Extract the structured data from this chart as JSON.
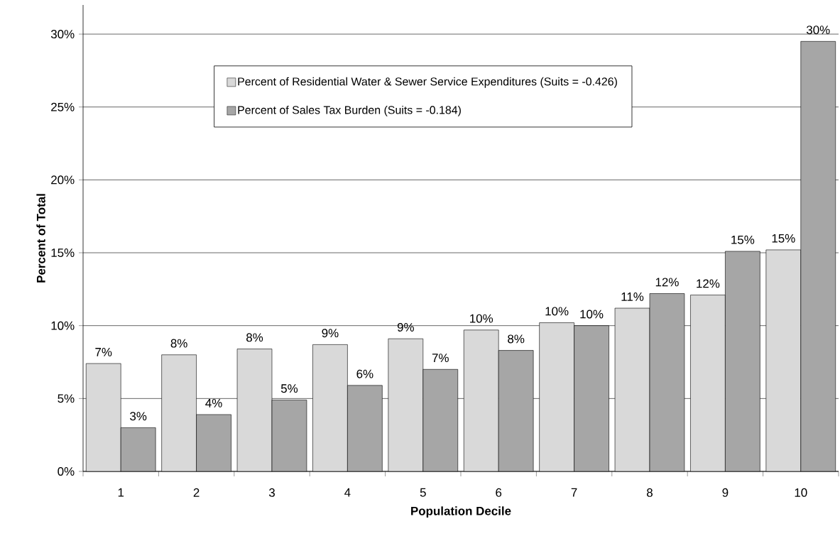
{
  "chart_data": {
    "type": "bar",
    "xlabel": "Population Decile",
    "ylabel": "Percent of Total",
    "categories": [
      "1",
      "2",
      "3",
      "4",
      "5",
      "6",
      "7",
      "8",
      "9",
      "10"
    ],
    "series": [
      {
        "name": "Percent of Residential Water & Sewer Service Expenditures (Suits = -0.426)",
        "color": "#d9d9d9",
        "values": [
          7.4,
          8.0,
          8.4,
          8.7,
          9.1,
          9.7,
          10.2,
          11.2,
          12.1,
          15.2
        ],
        "value_labels": [
          "7%",
          "8%",
          "8%",
          "9%",
          "9%",
          "10%",
          "10%",
          "11%",
          "12%",
          "15%"
        ]
      },
      {
        "name": "Percent of Sales Tax Burden (Suits = -0.184)",
        "color": "#a6a6a6",
        "values": [
          3.0,
          3.9,
          4.9,
          5.9,
          7.0,
          8.3,
          10.0,
          12.2,
          15.1,
          29.5
        ],
        "value_labels": [
          "3%",
          "4%",
          "5%",
          "6%",
          "7%",
          "8%",
          "10%",
          "12%",
          "15%",
          "30%"
        ]
      }
    ],
    "ylim": [
      0,
      32
    ],
    "yticks": [
      {
        "value": 0,
        "label": "0%"
      },
      {
        "value": 5,
        "label": "5%"
      },
      {
        "value": 10,
        "label": "10%"
      },
      {
        "value": 15,
        "label": "15%"
      },
      {
        "value": 20,
        "label": "20%"
      },
      {
        "value": 25,
        "label": "25%"
      },
      {
        "value": 30,
        "label": "30%"
      }
    ],
    "grid": "y",
    "legend": "top"
  }
}
